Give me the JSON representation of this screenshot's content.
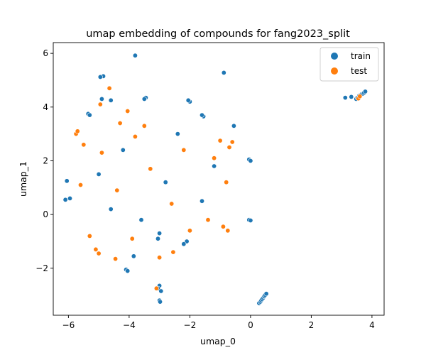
{
  "chart_data": {
    "type": "scatter",
    "title": "umap embedding of compounds for fang2023_split",
    "xlabel": "umap_0",
    "ylabel": "umap_1",
    "xlim": [
      -6.5,
      4.4
    ],
    "ylim": [
      -3.75,
      6.4
    ],
    "xticks": [
      -6,
      -4,
      -2,
      0,
      2,
      4
    ],
    "xtick_labels": [
      "−6",
      "−4",
      "−2",
      "0",
      "2",
      "4"
    ],
    "yticks": [
      -2,
      0,
      2,
      4,
      6
    ],
    "ytick_labels": [
      "−2",
      "0",
      "2",
      "4",
      "6"
    ],
    "grid": false,
    "legend_position": "top-right",
    "series": [
      {
        "name": "train",
        "color": "#1f77b4",
        "edge_color": "#ffffff",
        "points": [
          [
            -3.8,
            5.92
          ],
          [
            -0.88,
            5.28
          ],
          [
            -4.85,
            5.15
          ],
          [
            -4.95,
            5.12
          ],
          [
            -4.9,
            4.3
          ],
          [
            -4.6,
            4.25
          ],
          [
            -3.45,
            4.35
          ],
          [
            -3.5,
            4.3
          ],
          [
            -2.0,
            4.2
          ],
          [
            -2.05,
            4.25
          ],
          [
            -5.35,
            3.75
          ],
          [
            -5.3,
            3.7
          ],
          [
            -1.55,
            3.65
          ],
          [
            -1.6,
            3.7
          ],
          [
            -0.55,
            3.3
          ],
          [
            -6.05,
            1.25
          ],
          [
            -6.1,
            0.55
          ],
          [
            -5.95,
            0.6
          ],
          [
            -0.05,
            2.05
          ],
          [
            0.0,
            2.0
          ],
          [
            -0.05,
            -0.2
          ],
          [
            0.0,
            -0.22
          ],
          [
            -3.0,
            -0.7
          ],
          [
            -3.05,
            -0.9
          ],
          [
            -2.1,
            -1.0
          ],
          [
            -2.2,
            -1.1
          ],
          [
            -4.1,
            -2.05
          ],
          [
            -4.05,
            -2.1
          ],
          [
            -3.85,
            -1.55
          ],
          [
            -3.0,
            -2.65
          ],
          [
            -3.05,
            -2.75
          ],
          [
            -2.95,
            -2.85
          ],
          [
            -3.0,
            -3.2
          ],
          [
            -2.98,
            -3.25
          ],
          [
            0.28,
            -3.3
          ],
          [
            0.32,
            -3.25
          ],
          [
            0.35,
            -3.2
          ],
          [
            0.38,
            -3.15
          ],
          [
            0.42,
            -3.1
          ],
          [
            0.45,
            -3.05
          ],
          [
            0.48,
            -3.0
          ],
          [
            0.52,
            -2.95
          ],
          [
            3.12,
            4.35
          ],
          [
            3.32,
            4.38
          ],
          [
            3.48,
            4.3
          ],
          [
            3.52,
            4.35
          ],
          [
            3.58,
            4.42
          ],
          [
            3.62,
            4.45
          ],
          [
            3.66,
            4.48
          ],
          [
            3.7,
            4.5
          ],
          [
            3.74,
            4.53
          ],
          [
            3.78,
            4.58
          ],
          [
            -5.0,
            1.5
          ],
          [
            -4.2,
            2.4
          ],
          [
            -2.8,
            1.2
          ],
          [
            -1.6,
            0.5
          ],
          [
            -3.6,
            -0.2
          ],
          [
            -2.4,
            3.0
          ],
          [
            -4.6,
            0.2
          ],
          [
            -1.2,
            1.8
          ]
        ]
      },
      {
        "name": "test",
        "color": "#ff7f0e",
        "edge_color": "#ffffff",
        "points": [
          [
            -4.65,
            4.7
          ],
          [
            -4.95,
            4.1
          ],
          [
            -5.75,
            3.0
          ],
          [
            -5.7,
            3.1
          ],
          [
            -4.05,
            3.85
          ],
          [
            -1.0,
            2.75
          ],
          [
            -0.6,
            2.7
          ],
          [
            -0.7,
            2.5
          ],
          [
            -3.1,
            -2.75
          ],
          [
            -3.0,
            -1.6
          ],
          [
            -2.55,
            -1.4
          ],
          [
            -4.45,
            -1.65
          ],
          [
            -5.0,
            -1.45
          ],
          [
            -5.1,
            -1.3
          ],
          [
            -0.8,
            1.2
          ],
          [
            -0.9,
            -0.45
          ],
          [
            -0.75,
            -0.6
          ],
          [
            -3.8,
            2.9
          ],
          [
            -2.2,
            2.4
          ],
          [
            -4.4,
            0.9
          ],
          [
            -2.6,
            0.4
          ],
          [
            -3.3,
            1.7
          ],
          [
            -1.4,
            -0.2
          ],
          [
            -4.9,
            2.3
          ],
          [
            -5.6,
            1.1
          ],
          [
            -5.3,
            -0.8
          ],
          [
            -3.9,
            -0.9
          ],
          [
            -2.0,
            -0.6
          ],
          [
            -1.2,
            2.1
          ],
          [
            -3.5,
            3.3
          ],
          [
            -4.3,
            3.4
          ],
          [
            -5.5,
            2.6
          ],
          [
            3.55,
            4.32
          ],
          [
            3.6,
            4.4
          ]
        ]
      }
    ]
  }
}
